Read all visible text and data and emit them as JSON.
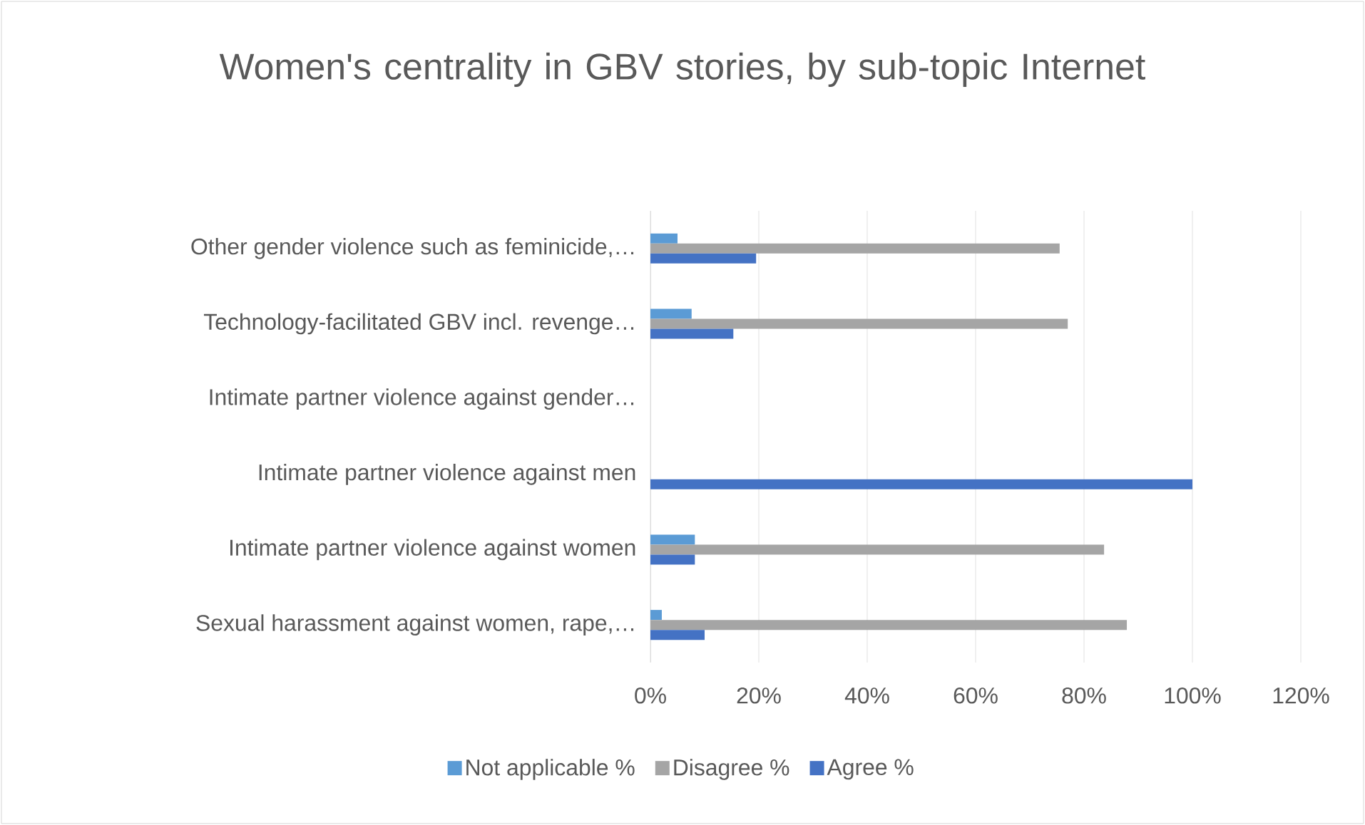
{
  "chart_data": {
    "type": "bar",
    "orientation": "horizontal",
    "title": "Women's centrality in GBV stories, by sub-topic Internet",
    "categories": [
      "Other gender violence such as feminicide,…",
      "Technology-facilitated GBV incl. revenge…",
      "Intimate partner violence against gender…",
      "Intimate partner violence against men",
      "Intimate partner violence against women",
      "Sexual harassment against women, rape,…"
    ],
    "series": [
      {
        "name": "Not applicable %",
        "color": "#5b9bd5",
        "values": [
          5,
          7.6,
          0,
          0,
          8.2,
          2.1
        ]
      },
      {
        "name": "Disagree %",
        "color": "#a5a5a5",
        "values": [
          75.5,
          77,
          0,
          0,
          83.7,
          87.9
        ]
      },
      {
        "name": "Agree %",
        "color": "#4472c4",
        "values": [
          19.5,
          15.3,
          0,
          100,
          8.2,
          10
        ]
      }
    ],
    "xlim": [
      0,
      120
    ],
    "xticks": [
      {
        "value": 0,
        "label": "0%"
      },
      {
        "value": 20,
        "label": "20%"
      },
      {
        "value": 40,
        "label": "40%"
      },
      {
        "value": 60,
        "label": "60%"
      },
      {
        "value": 80,
        "label": "80%"
      },
      {
        "value": 100,
        "label": "100%"
      },
      {
        "value": 120,
        "label": "120%"
      }
    ],
    "grid": "x",
    "legend": "bottom"
  }
}
